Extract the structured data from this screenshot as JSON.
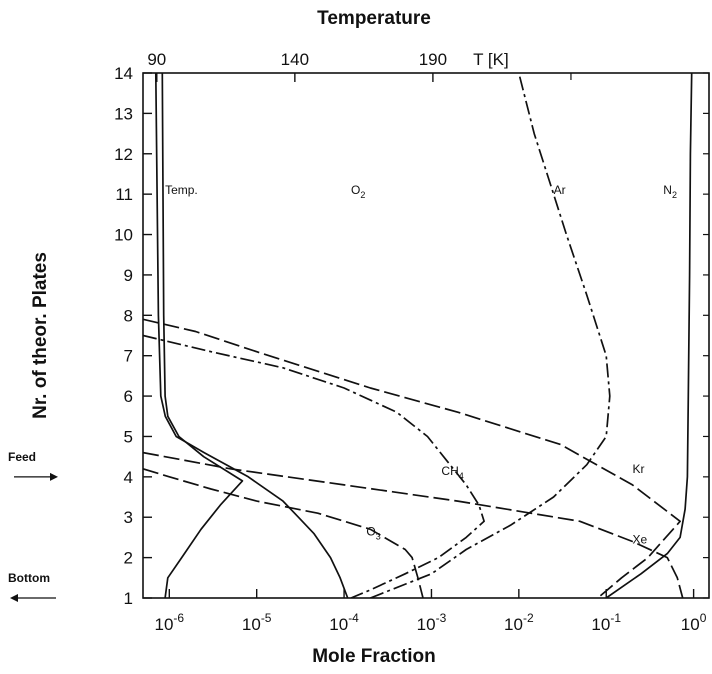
{
  "chart_data": {
    "type": "line",
    "title": "Temperature",
    "xlabel": "Mole Fraction",
    "ylabel": "Nr. of theor. Plates",
    "top_axis": {
      "label": "T [K]",
      "ticks": [
        "90",
        "140",
        "190"
      ],
      "tick_values": [
        90,
        140,
        190
      ],
      "xlim": [
        85,
        290
      ]
    },
    "x_scale": "log",
    "xlim": [
      5e-07,
      1.5
    ],
    "ylim": [
      1,
      14
    ],
    "x_ticks": [
      {
        "value": 1e-06,
        "label": "10",
        "exp": "-6"
      },
      {
        "value": 1e-05,
        "label": "10",
        "exp": "-5"
      },
      {
        "value": 0.0001,
        "label": "10",
        "exp": "-4"
      },
      {
        "value": 0.001,
        "label": "10",
        "exp": "-3"
      },
      {
        "value": 0.01,
        "label": "10",
        "exp": "-2"
      },
      {
        "value": 0.1,
        "label": "10",
        "exp": "-1"
      },
      {
        "value": 1,
        "label": "10",
        "exp": "0"
      }
    ],
    "y_ticks": [
      "1",
      "2",
      "3",
      "4",
      "5",
      "6",
      "7",
      "8",
      "9",
      "10",
      "11",
      "12",
      "13",
      "14"
    ],
    "markers": [
      {
        "label": "Feed",
        "y": 4
      },
      {
        "label": "Bottom",
        "y": 1
      }
    ],
    "series": [
      {
        "name": "Temp.",
        "axis": "top",
        "dash": "solid",
        "label": {
          "text": "Temp.",
          "sub": "",
          "at": [
            93,
            11
          ]
        },
        "points": [
          [
            93,
            1
          ],
          [
            94,
            1.5
          ],
          [
            99,
            2
          ],
          [
            106,
            2.7
          ],
          [
            113,
            3.3
          ],
          [
            121,
            3.9
          ],
          [
            107,
            4.5
          ],
          [
            98,
            5
          ],
          [
            94,
            5.5
          ],
          [
            93,
            6
          ],
          [
            92.5,
            8
          ],
          [
            92,
            14
          ]
        ]
      },
      {
        "name": "O2",
        "axis": "bottom",
        "dash": "solid",
        "label": {
          "text": "O",
          "sub": "2",
          "at": [
            0.00012,
            11
          ]
        },
        "points": [
          [
            0.00011,
            1
          ],
          [
            9e-05,
            1.5
          ],
          [
            7e-05,
            2
          ],
          [
            4.5e-05,
            2.6
          ],
          [
            3e-05,
            3
          ],
          [
            2e-05,
            3.4
          ],
          [
            8e-06,
            4
          ],
          [
            2.5e-06,
            4.6
          ],
          [
            1.2e-06,
            5
          ],
          [
            9e-07,
            5.5
          ],
          [
            8e-07,
            6
          ],
          [
            7.5e-07,
            8
          ],
          [
            7e-07,
            14
          ]
        ]
      },
      {
        "name": "Ar",
        "axis": "bottom",
        "dash": "dashdot",
        "label": {
          "text": "Ar",
          "sub": "",
          "at": [
            0.025,
            11
          ]
        },
        "points": [
          [
            0.0002,
            1
          ],
          [
            0.001,
            1.6
          ],
          [
            0.0025,
            2.2
          ],
          [
            0.008,
            2.8
          ],
          [
            0.025,
            3.5
          ],
          [
            0.06,
            4.3
          ],
          [
            0.1,
            5
          ],
          [
            0.11,
            6
          ],
          [
            0.1,
            7
          ],
          [
            0.06,
            8.5
          ],
          [
            0.035,
            10
          ],
          [
            0.025,
            11
          ],
          [
            0.015,
            12.5
          ],
          [
            0.01,
            14
          ]
        ]
      },
      {
        "name": "N2",
        "axis": "bottom",
        "dash": "solid",
        "label": {
          "text": "N",
          "sub": "2",
          "at": [
            0.45,
            11
          ]
        },
        "points": [
          [
            0.1,
            1
          ],
          [
            0.25,
            1.6
          ],
          [
            0.5,
            2.1
          ],
          [
            0.7,
            2.5
          ],
          [
            0.8,
            3.2
          ],
          [
            0.85,
            4
          ],
          [
            0.87,
            6
          ],
          [
            0.9,
            9
          ],
          [
            0.92,
            12
          ],
          [
            0.95,
            14
          ]
        ]
      },
      {
        "name": "Kr",
        "axis": "bottom",
        "dash": "longdash",
        "label": {
          "text": "Kr",
          "sub": "",
          "at": [
            0.2,
            4.1
          ]
        },
        "points": [
          [
            5e-07,
            7.9
          ],
          [
            2e-06,
            7.6
          ],
          [
            1e-05,
            7.1
          ],
          [
            0.0002,
            6.2
          ],
          [
            0.002,
            5.6
          ],
          [
            0.03,
            4.8
          ],
          [
            0.2,
            3.8
          ],
          [
            0.7,
            2.9
          ],
          [
            0.3,
            2
          ],
          [
            0.15,
            1.5
          ],
          [
            0.08,
            1
          ]
        ]
      },
      {
        "name": "Xe",
        "axis": "bottom",
        "dash": "longdash",
        "label": {
          "text": "Xe",
          "sub": "",
          "at": [
            0.2,
            2.35
          ]
        },
        "points": [
          [
            5e-07,
            4.6
          ],
          [
            5e-06,
            4.2
          ],
          [
            0.0001,
            3.8
          ],
          [
            0.002,
            3.4
          ],
          [
            0.05,
            2.9
          ],
          [
            0.2,
            2.4
          ],
          [
            0.5,
            2
          ],
          [
            0.65,
            1.5
          ],
          [
            0.75,
            1
          ]
        ]
      },
      {
        "name": "CH4",
        "axis": "bottom",
        "dash": "dashdot",
        "label": {
          "text": "CH",
          "sub": "4",
          "at": [
            0.0013,
            4.05
          ]
        },
        "points": [
          [
            5e-07,
            7.5
          ],
          [
            3e-06,
            7.1
          ],
          [
            2e-05,
            6.7
          ],
          [
            0.0001,
            6.2
          ],
          [
            0.0004,
            5.6
          ],
          [
            0.0009,
            5
          ],
          [
            0.0015,
            4.4
          ],
          [
            0.0025,
            3.8
          ],
          [
            0.0035,
            3.3
          ],
          [
            0.004,
            2.9
          ],
          [
            0.0025,
            2.5
          ],
          [
            0.0012,
            2
          ],
          [
            0.0005,
            1.6
          ],
          [
            0.0002,
            1.2
          ],
          [
            0.00012,
            1
          ]
        ]
      },
      {
        "name": "O3",
        "axis": "bottom",
        "dash": "longdash",
        "label": {
          "text": "O",
          "sub": "3",
          "at": [
            0.00018,
            2.55
          ]
        },
        "points": [
          [
            5e-07,
            4.2
          ],
          [
            1e-06,
            4
          ],
          [
            3e-06,
            3.7
          ],
          [
            1e-05,
            3.4
          ],
          [
            5e-05,
            3.1
          ],
          [
            0.0002,
            2.7
          ],
          [
            0.0005,
            2.2
          ],
          [
            0.0006,
            2
          ],
          [
            0.0007,
            1.5
          ],
          [
            0.0008,
            1
          ]
        ]
      }
    ]
  }
}
